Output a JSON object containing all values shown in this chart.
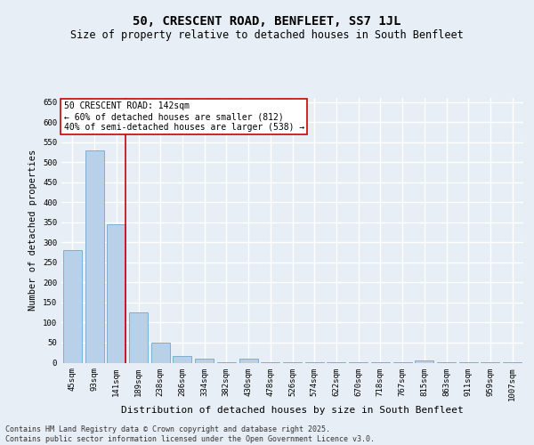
{
  "title": "50, CRESCENT ROAD, BENFLEET, SS7 1JL",
  "subtitle": "Size of property relative to detached houses in South Benfleet",
  "xlabel": "Distribution of detached houses by size in South Benfleet",
  "ylabel": "Number of detached properties",
  "categories": [
    "45sqm",
    "93sqm",
    "141sqm",
    "189sqm",
    "238sqm",
    "286sqm",
    "334sqm",
    "382sqm",
    "430sqm",
    "478sqm",
    "526sqm",
    "574sqm",
    "622sqm",
    "670sqm",
    "718sqm",
    "767sqm",
    "815sqm",
    "863sqm",
    "911sqm",
    "959sqm",
    "1007sqm"
  ],
  "values": [
    280,
    530,
    345,
    125,
    50,
    17,
    10,
    2,
    10,
    2,
    2,
    2,
    2,
    2,
    2,
    2,
    5,
    2,
    2,
    2,
    2
  ],
  "bar_color": "#b8d0e8",
  "bar_edge_color": "#7aafd4",
  "vline_color": "#cc0000",
  "annotation_text": "50 CRESCENT ROAD: 142sqm\n← 60% of detached houses are smaller (812)\n40% of semi-detached houses are larger (538) →",
  "annotation_box_color": "#ffffff",
  "annotation_box_edge": "#cc0000",
  "background_color": "#e8eef5",
  "plot_bg_color": "#e8eef5",
  "grid_color": "#ffffff",
  "ylim": [
    0,
    660
  ],
  "yticks": [
    0,
    50,
    100,
    150,
    200,
    250,
    300,
    350,
    400,
    450,
    500,
    550,
    600,
    650
  ],
  "footer": "Contains HM Land Registry data © Crown copyright and database right 2025.\nContains public sector information licensed under the Open Government Licence v3.0.",
  "title_fontsize": 10,
  "subtitle_fontsize": 8.5,
  "xlabel_fontsize": 8,
  "ylabel_fontsize": 7.5,
  "tick_fontsize": 6.5,
  "annotation_fontsize": 7,
  "footer_fontsize": 6
}
